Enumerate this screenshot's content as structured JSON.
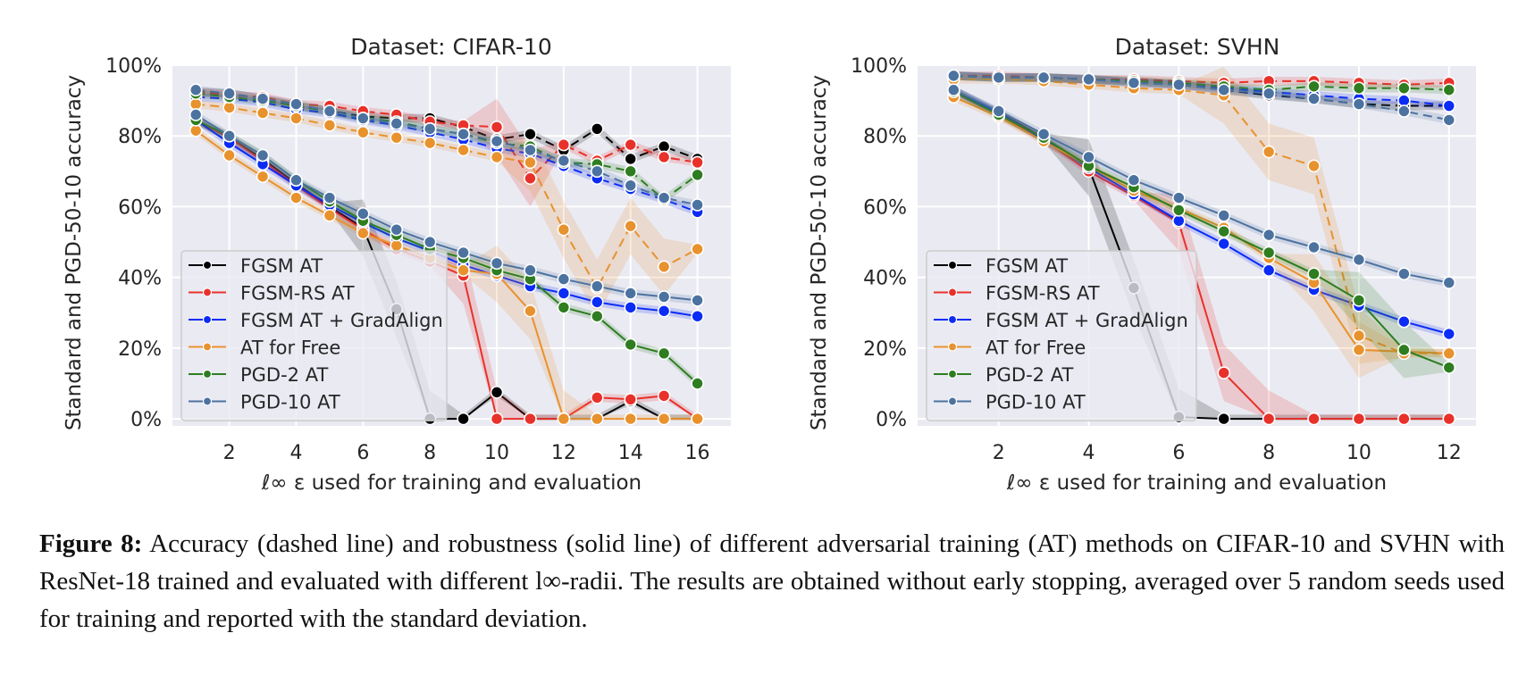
{
  "caption": {
    "label": "Figure 8:",
    "text": "Accuracy (dashed line) and robustness (solid line) of different adversarial training (AT) methods on CIFAR-10 and SVHN with ResNet-18 trained and evaluated with different l∞-radii. The results are obtained without early stopping, averaged over 5 random seeds used for training and reported with the standard deviation."
  },
  "chart_data": [
    {
      "type": "line",
      "title": "Dataset: CIFAR-10",
      "xlabel": "ℓ∞ ε used for training and evaluation",
      "ylabel": "Standard and PGD-50-10 accuracy",
      "xlim": [
        0.3,
        17.0
      ],
      "ylim": [
        -2,
        100
      ],
      "xticks": [
        2,
        4,
        6,
        8,
        10,
        12,
        14,
        16
      ],
      "yticks": [
        0,
        20,
        40,
        60,
        80,
        100
      ],
      "ytick_labels": [
        "0%",
        "20%",
        "40%",
        "60%",
        "80%",
        "100%"
      ],
      "grid": true,
      "legend_position": "lower-left",
      "x": [
        1,
        2,
        3,
        4,
        5,
        6,
        7,
        8,
        9,
        10,
        11,
        12,
        13,
        14,
        15,
        16
      ],
      "series": [
        {
          "name": "FGSM AT",
          "color": "#000000",
          "style": "solid",
          "values": [
            84.5,
            79.5,
            73.5,
            66.5,
            60,
            54,
            31,
            0,
            0,
            7.5,
            0,
            0,
            0,
            5,
            0,
            0
          ],
          "faded_from_index": 6
        },
        {
          "name": "FGSM AT",
          "color": "#000000",
          "style": "dashed",
          "legend": false,
          "values": [
            92.5,
            92,
            90.5,
            88.5,
            87,
            85.5,
            85,
            85,
            82.5,
            79,
            80.5,
            76,
            82,
            73.5,
            77,
            73.5
          ]
        },
        {
          "name": "FGSM-RS AT",
          "color": "#e8312a",
          "style": "solid",
          "values": [
            84.5,
            79.5,
            73,
            66,
            59.5,
            53.5,
            48,
            44.5,
            40.5,
            0,
            0,
            0,
            6,
            5.5,
            6.5,
            0
          ]
        },
        {
          "name": "FGSM-RS AT",
          "color": "#e8312a",
          "style": "dashed",
          "legend": false,
          "values": [
            92.5,
            91.5,
            91,
            89,
            88.5,
            87,
            86,
            84,
            83,
            82.5,
            68,
            77.5,
            73,
            77.5,
            74,
            72.5
          ]
        },
        {
          "name": "FGSM AT + GradAlign",
          "color": "#0b2cf5",
          "style": "solid",
          "values": [
            84.5,
            78,
            72,
            66,
            60.5,
            55.5,
            51,
            47.5,
            43.5,
            40.5,
            37.5,
            35.5,
            33,
            31.5,
            30.5,
            29
          ]
        },
        {
          "name": "FGSM AT + GradAlign",
          "color": "#0b2cf5",
          "style": "dashed",
          "legend": false,
          "values": [
            91,
            90.5,
            89.5,
            87.5,
            86.5,
            84.5,
            83,
            81,
            79,
            76.5,
            75,
            71.5,
            68,
            65,
            62,
            58.5
          ]
        },
        {
          "name": "AT for Free",
          "color": "#e8922e",
          "style": "solid",
          "values": [
            81.5,
            74.5,
            68.5,
            62.5,
            57.5,
            52.5,
            49,
            45.5,
            42,
            41,
            30.5,
            0,
            0,
            0,
            0,
            0
          ]
        },
        {
          "name": "AT for Free",
          "color": "#e8922e",
          "style": "dashed",
          "legend": false,
          "values": [
            89,
            88,
            86.5,
            85,
            83,
            81,
            79.5,
            78,
            76,
            74,
            72.5,
            53.5,
            37,
            54.5,
            43,
            48
          ]
        },
        {
          "name": "PGD-2 AT",
          "color": "#2e7d20",
          "style": "solid",
          "values": [
            84.5,
            80,
            74.5,
            67.5,
            61.5,
            56,
            52,
            48,
            45.5,
            42,
            39.5,
            31.5,
            29,
            21,
            18.5,
            10
          ]
        },
        {
          "name": "PGD-2 AT",
          "color": "#2e7d20",
          "style": "dashed",
          "legend": false,
          "values": [
            92,
            91,
            90,
            88.5,
            87,
            85,
            84,
            82,
            80.5,
            78,
            77,
            72.5,
            72,
            70,
            62,
            69
          ]
        },
        {
          "name": "PGD-10 AT",
          "color": "#4c72a0",
          "style": "solid",
          "values": [
            86,
            80,
            74.5,
            67.5,
            62.5,
            58,
            53.5,
            50,
            47,
            44,
            42,
            39.5,
            37.5,
            35.5,
            34.5,
            33.5
          ]
        },
        {
          "name": "PGD-10 AT",
          "color": "#4c72a0",
          "style": "dashed",
          "legend": false,
          "values": [
            93,
            92,
            90.5,
            89,
            87,
            85,
            83.5,
            82,
            80.5,
            78.5,
            76,
            73,
            70,
            66,
            62.5,
            60.5
          ]
        }
      ]
    },
    {
      "type": "line",
      "title": "Dataset: SVHN",
      "xlabel": "ℓ∞ ε used for training and evaluation",
      "ylabel": "Standard and PGD-50-10 accuracy",
      "xlim": [
        0.2,
        12.6
      ],
      "ylim": [
        -2,
        100
      ],
      "xticks": [
        2,
        4,
        6,
        8,
        10,
        12
      ],
      "yticks": [
        0,
        20,
        40,
        60,
        80,
        100
      ],
      "ytick_labels": [
        "0%",
        "20%",
        "40%",
        "60%",
        "80%",
        "100%"
      ],
      "grid": true,
      "legend_position": "lower-left",
      "x": [
        1,
        2,
        3,
        4,
        5,
        6,
        7,
        8,
        9,
        10,
        11,
        12
      ],
      "series": [
        {
          "name": "FGSM AT",
          "color": "#000000",
          "style": "solid",
          "values": [
            93,
            86.5,
            79.5,
            71,
            37,
            0.5,
            0,
            0,
            0,
            0,
            0,
            0
          ],
          "faded_from_index": 4
        },
        {
          "name": "FGSM AT",
          "color": "#000000",
          "style": "dashed",
          "legend": false,
          "values": [
            97,
            96.5,
            96.5,
            96,
            95.5,
            94.5,
            93,
            91.5,
            90.5,
            89,
            88.5,
            88.5
          ]
        },
        {
          "name": "FGSM-RS AT",
          "color": "#e8312a",
          "style": "solid",
          "values": [
            92.5,
            86,
            79,
            70,
            63,
            55.5,
            13,
            0,
            0,
            0,
            0,
            0
          ]
        },
        {
          "name": "FGSM-RS AT",
          "color": "#e8312a",
          "style": "dashed",
          "legend": false,
          "values": [
            97,
            97,
            96.5,
            96,
            96,
            95.5,
            95,
            95.5,
            95.5,
            95,
            94.5,
            95
          ]
        },
        {
          "name": "FGSM AT + GradAlign",
          "color": "#0b2cf5",
          "style": "solid",
          "values": [
            93,
            86.5,
            79,
            71,
            63.5,
            56,
            49.5,
            42,
            36.5,
            32,
            27.5,
            24
          ]
        },
        {
          "name": "FGSM AT + GradAlign",
          "color": "#0b2cf5",
          "style": "dashed",
          "legend": false,
          "values": [
            97,
            96.5,
            96.5,
            96,
            95,
            94.5,
            93.5,
            92.5,
            91.5,
            90.5,
            90,
            88.5
          ]
        },
        {
          "name": "AT for Free",
          "color": "#e8922e",
          "style": "solid",
          "values": [
            91,
            85.5,
            78.5,
            71.5,
            64.5,
            59.5,
            54,
            45.5,
            38.5,
            19.5,
            19,
            18.5
          ]
        },
        {
          "name": "AT for Free",
          "color": "#e8922e",
          "style": "dashed",
          "legend": false,
          "values": [
            96,
            96,
            95.5,
            94.5,
            93.5,
            93,
            91.5,
            75.5,
            71.5,
            23.5,
            18.5,
            18.5
          ]
        },
        {
          "name": "PGD-2 AT",
          "color": "#2e7d20",
          "style": "solid",
          "values": [
            92.5,
            86,
            79.5,
            71.5,
            65.5,
            59,
            53,
            47,
            41,
            33.5,
            19.5,
            14.5
          ]
        },
        {
          "name": "PGD-2 AT",
          "color": "#2e7d20",
          "style": "dashed",
          "legend": false,
          "values": [
            97,
            96.5,
            96.5,
            96,
            95.5,
            95,
            94,
            93,
            94,
            93.5,
            93.5,
            93
          ]
        },
        {
          "name": "PGD-10 AT",
          "color": "#4c72a0",
          "style": "solid",
          "values": [
            93,
            87,
            80.5,
            74,
            67.5,
            62.5,
            57.5,
            52,
            48.5,
            45,
            41,
            38.5
          ]
        },
        {
          "name": "PGD-10 AT",
          "color": "#4c72a0",
          "style": "dashed",
          "legend": false,
          "values": [
            97,
            96.5,
            96.5,
            96,
            95,
            94.5,
            93,
            92,
            90.5,
            89,
            87,
            84.5
          ]
        }
      ]
    }
  ],
  "legend": [
    "FGSM AT",
    "FGSM-RS AT",
    "FGSM AT + GradAlign",
    "AT for Free",
    "PGD-2 AT",
    "PGD-10 AT"
  ],
  "legend_colors": [
    "#000000",
    "#e8312a",
    "#0b2cf5",
    "#e8922e",
    "#2e7d20",
    "#4c72a0"
  ]
}
